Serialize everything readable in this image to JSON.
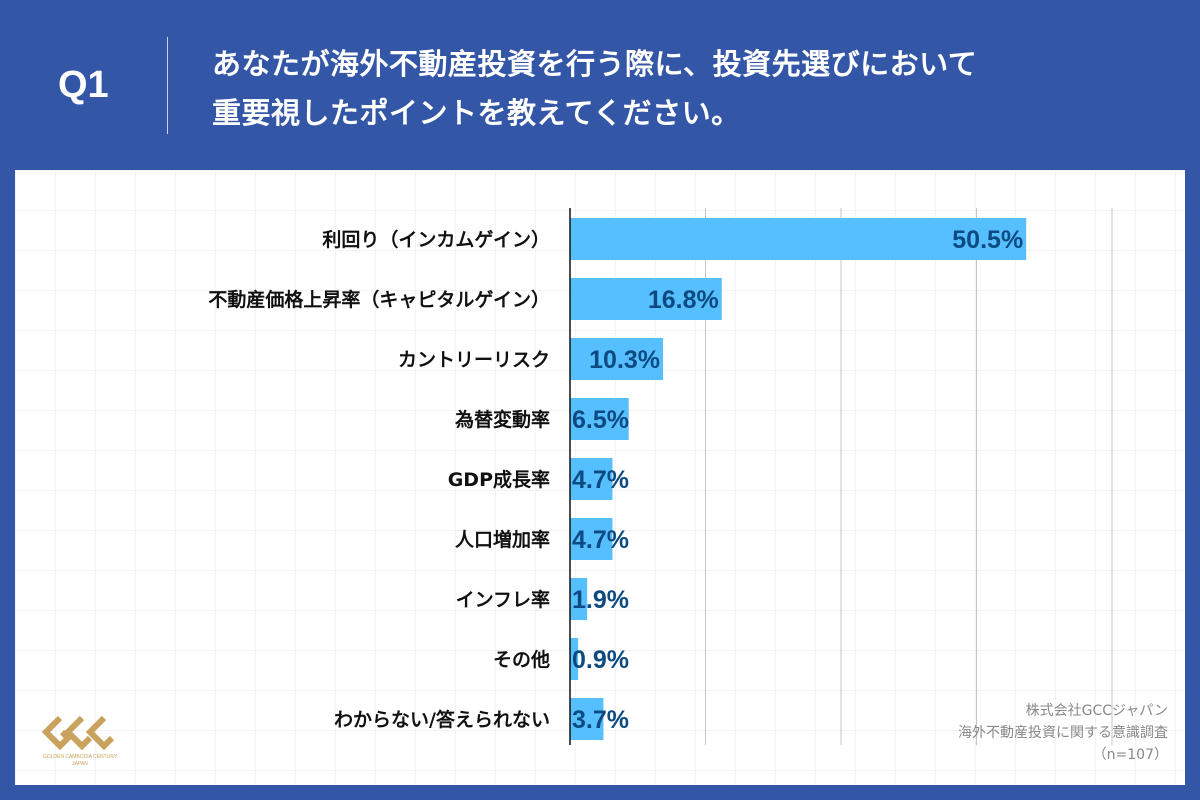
{
  "header": {
    "question_number": "Q1",
    "title_line1": "あなたが海外不動産投資を行う際に、投資先選びにおいて",
    "title_line2": "重要視したポイントを教えてください。"
  },
  "chart_data": {
    "type": "bar",
    "orientation": "horizontal",
    "categories": [
      "利回り（インカムゲイン）",
      "不動産価格上昇率（キャピタルゲイン）",
      "カントリーリスク",
      "為替変動率",
      "GDP成長率",
      "人口増加率",
      "インフレ率",
      "その他",
      "わからない/答えられない"
    ],
    "values": [
      50.5,
      16.8,
      10.3,
      6.5,
      4.7,
      4.7,
      1.9,
      0.9,
      3.7
    ],
    "data_labels": [
      "50.5%",
      "16.8%",
      "10.3%",
      "6.5%",
      "4.7%",
      "4.7%",
      "1.9%",
      "0.9%",
      "3.7%"
    ],
    "xlim": [
      0,
      60
    ],
    "grid_step": 15,
    "grid": true,
    "bar_color": "#56bfff",
    "label_color": "#0d4a82"
  },
  "credit": {
    "line1": "株式会社GCCジャパン",
    "line2": "海外不動産投資に関する意識調査",
    "line3": "（n=107）"
  },
  "logo": {
    "text": "GCC",
    "subtext": "GOLDEN CAMBODIA CENTURY JAPAN"
  },
  "colors": {
    "background": "#3356a6",
    "logo_gold": "#c9a25e"
  }
}
